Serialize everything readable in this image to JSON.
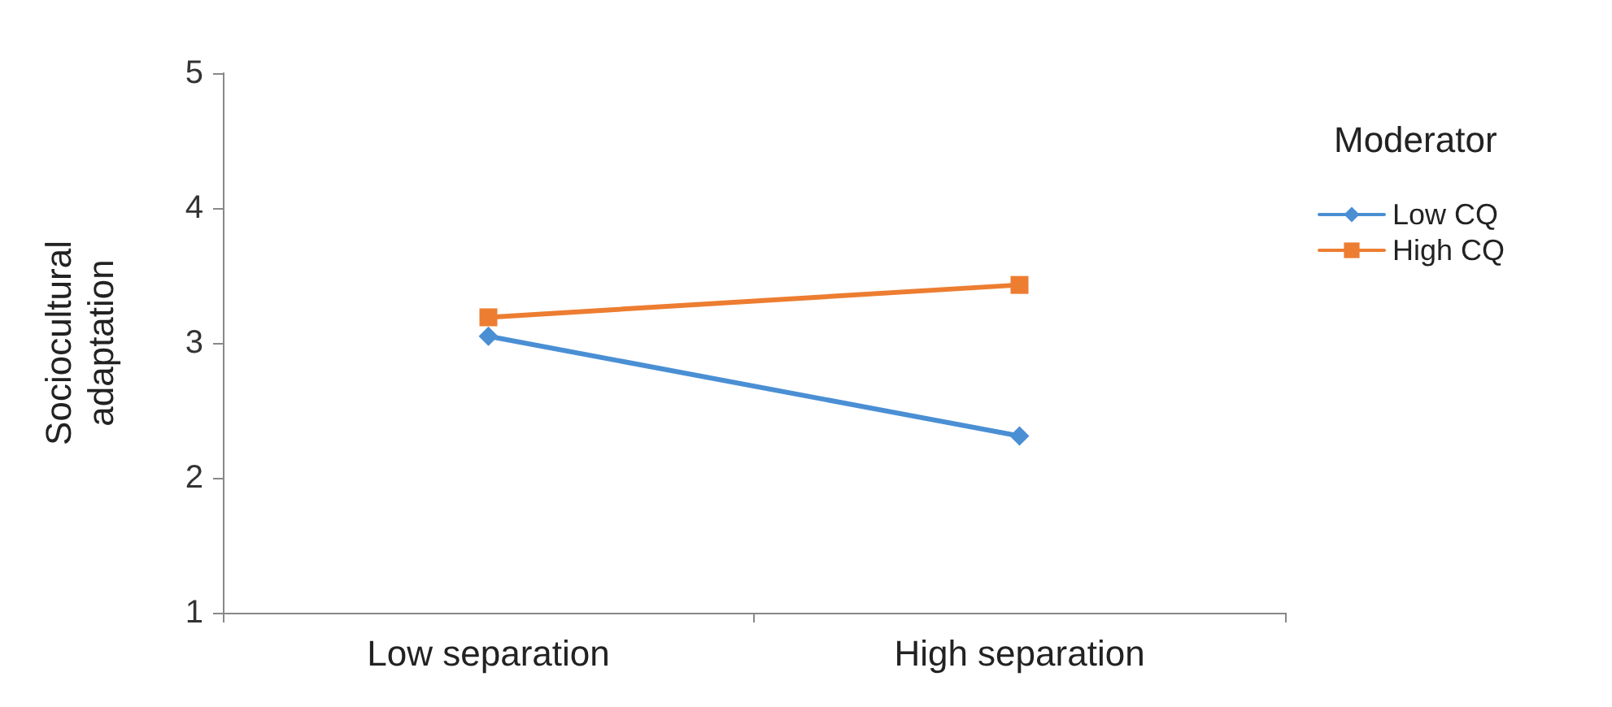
{
  "chart_data": {
    "type": "line",
    "ylabel": "Sociocultural\nadaptation",
    "legend_title": "Moderator",
    "categories": [
      "Low separation",
      "High separation"
    ],
    "series": [
      {
        "name": "Low CQ",
        "color": "#4a8fd4",
        "values": [
          3.05,
          2.31
        ],
        "marker": "diamond"
      },
      {
        "name": "High CQ",
        "color": "#ed7d31",
        "values": [
          3.19,
          3.43
        ],
        "marker": "square"
      }
    ],
    "ylim": [
      1,
      5
    ],
    "yticks": [
      1,
      2,
      3,
      4,
      5
    ],
    "grid": false,
    "legend": "right",
    "line_style": "solid"
  }
}
